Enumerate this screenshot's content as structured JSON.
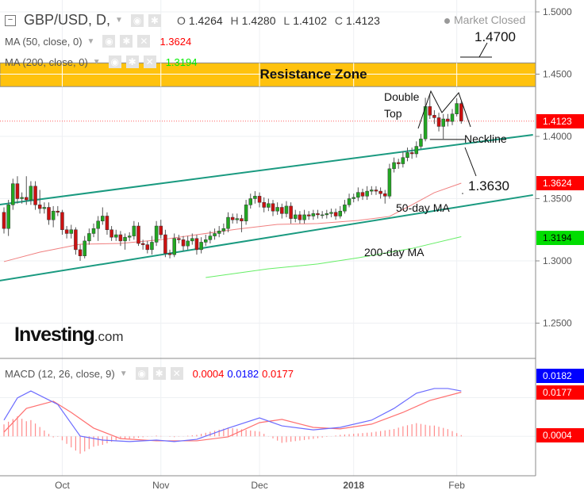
{
  "header": {
    "symbol": "GBP/USD, D,",
    "ohlc": {
      "o_label": "O",
      "o": "1.4264",
      "h_label": "H",
      "h": "1.4280",
      "l_label": "L",
      "l": "1.4102",
      "c_label": "C",
      "c": "1.4123"
    },
    "market_status": "Market Closed",
    "ma50_label": "MA (50, close, 0)",
    "ma50_value": "1.3624",
    "ma200_label": "MA (200, close, 0)",
    "ma200_value": "1.3194",
    "macd_label": "MACD (12, 26, close, 9)",
    "macd_hist_value": "0.0004",
    "macd_value": "0.0182",
    "macd_signal_value": "0.0177"
  },
  "logo": {
    "brand": "Investing",
    "suffix": ".com"
  },
  "colors": {
    "up": "#22a822",
    "down": "#cc1111",
    "ma50": "#f08080",
    "ma200": "#66ee66",
    "channel": "#1a9a80",
    "resistance": "#ffc20e",
    "macd": "#6b6bff",
    "signal": "#ff7070",
    "hist": "#ff8c8c",
    "tag_price": "#ff0000",
    "tag_ma200": "#00dd00",
    "tag_macd": "#0000ff"
  },
  "icons": [
    "collapse-icon",
    "eye-icon",
    "gear-icon",
    "close-icon",
    "chevron-down-icon"
  ],
  "chart_data": {
    "type": "candlestick",
    "price_axis": {
      "ticks": [
        "1.5000",
        "1.4500",
        "1.4000",
        "1.3500",
        "1.3000",
        "1.2500"
      ],
      "range": [
        1.23,
        1.51
      ]
    },
    "time_axis": {
      "ticks": [
        {
          "label": "Oct",
          "date": "2017-10-02"
        },
        {
          "label": "Nov",
          "date": "2017-11-01"
        },
        {
          "label": "Dec",
          "date": "2017-12-01"
        },
        {
          "label": "2018",
          "date": "2018-01-01",
          "bold": true
        },
        {
          "label": "Feb",
          "date": "2018-02-01"
        }
      ]
    },
    "grid": true,
    "ohlc": [
      [
        "2017-09-13",
        1.339,
        1.343,
        1.322,
        1.326
      ],
      [
        "2017-09-14",
        1.326,
        1.349,
        1.32,
        1.345
      ],
      [
        "2017-09-15",
        1.345,
        1.366,
        1.341,
        1.362
      ],
      [
        "2017-09-18",
        1.362,
        1.368,
        1.346,
        1.35
      ],
      [
        "2017-09-19",
        1.35,
        1.355,
        1.346,
        1.351
      ],
      [
        "2017-09-20",
        1.351,
        1.368,
        1.345,
        1.349
      ],
      [
        "2017-09-21",
        1.349,
        1.364,
        1.345,
        1.36
      ],
      [
        "2017-09-22",
        1.36,
        1.364,
        1.341,
        1.345
      ],
      [
        "2017-09-25",
        1.345,
        1.357,
        1.338,
        1.342
      ],
      [
        "2017-09-26",
        1.342,
        1.347,
        1.338,
        1.343
      ],
      [
        "2017-09-27",
        1.343,
        1.347,
        1.329,
        1.333
      ],
      [
        "2017-09-28",
        1.333,
        1.344,
        1.327,
        1.34
      ],
      [
        "2017-09-29",
        1.34,
        1.344,
        1.336,
        1.339
      ],
      [
        "2017-10-02",
        1.339,
        1.341,
        1.321,
        1.325
      ],
      [
        "2017-10-03",
        1.325,
        1.328,
        1.318,
        1.322
      ],
      [
        "2017-10-04",
        1.322,
        1.329,
        1.318,
        1.325
      ],
      [
        "2017-10-05",
        1.325,
        1.327,
        1.305,
        1.309
      ],
      [
        "2017-10-06",
        1.309,
        1.313,
        1.3,
        1.304
      ],
      [
        "2017-10-09",
        1.304,
        1.32,
        1.302,
        1.316
      ],
      [
        "2017-10-10",
        1.316,
        1.326,
        1.313,
        1.322
      ],
      [
        "2017-10-11",
        1.322,
        1.33,
        1.319,
        1.326
      ],
      [
        "2017-10-12",
        1.326,
        1.336,
        1.316,
        1.332
      ],
      [
        "2017-10-13",
        1.332,
        1.343,
        1.329,
        1.336
      ],
      [
        "2017-10-16",
        1.336,
        1.339,
        1.321,
        1.325
      ],
      [
        "2017-10-17",
        1.325,
        1.328,
        1.316,
        1.319
      ],
      [
        "2017-10-18",
        1.319,
        1.325,
        1.316,
        1.321
      ],
      [
        "2017-10-19",
        1.321,
        1.324,
        1.312,
        1.316
      ],
      [
        "2017-10-20",
        1.316,
        1.322,
        1.309,
        1.319
      ],
      [
        "2017-10-23",
        1.319,
        1.323,
        1.316,
        1.32
      ],
      [
        "2017-10-24",
        1.32,
        1.332,
        1.317,
        1.328
      ],
      [
        "2017-10-25",
        1.328,
        1.331,
        1.312,
        1.314
      ],
      [
        "2017-10-26",
        1.314,
        1.317,
        1.309,
        1.313
      ],
      [
        "2017-10-27",
        1.313,
        1.316,
        1.306,
        1.309
      ],
      [
        "2017-10-30",
        1.309,
        1.32,
        1.305,
        1.315
      ],
      [
        "2017-10-31",
        1.315,
        1.332,
        1.312,
        1.328
      ],
      [
        "2017-11-01",
        1.328,
        1.333,
        1.318,
        1.321
      ],
      [
        "2017-11-02",
        1.321,
        1.325,
        1.303,
        1.306
      ],
      [
        "2017-11-03",
        1.306,
        1.309,
        1.302,
        1.305
      ],
      [
        "2017-11-06",
        1.305,
        1.322,
        1.303,
        1.318
      ],
      [
        "2017-11-07",
        1.318,
        1.321,
        1.314,
        1.317
      ],
      [
        "2017-11-08",
        1.317,
        1.32,
        1.308,
        1.312
      ],
      [
        "2017-11-09",
        1.312,
        1.32,
        1.309,
        1.316
      ],
      [
        "2017-11-10",
        1.316,
        1.322,
        1.313,
        1.318
      ],
      [
        "2017-11-13",
        1.318,
        1.321,
        1.305,
        1.309
      ],
      [
        "2017-11-14",
        1.309,
        1.319,
        1.306,
        1.315
      ],
      [
        "2017-11-15",
        1.315,
        1.321,
        1.312,
        1.317
      ],
      [
        "2017-11-16",
        1.317,
        1.324,
        1.314,
        1.32
      ],
      [
        "2017-11-17",
        1.32,
        1.326,
        1.317,
        1.322
      ],
      [
        "2017-11-20",
        1.322,
        1.328,
        1.319,
        1.324
      ],
      [
        "2017-11-21",
        1.324,
        1.33,
        1.321,
        1.326
      ],
      [
        "2017-11-22",
        1.326,
        1.339,
        1.323,
        1.335
      ],
      [
        "2017-11-23",
        1.335,
        1.338,
        1.33,
        1.333
      ],
      [
        "2017-11-24",
        1.333,
        1.338,
        1.33,
        1.334
      ],
      [
        "2017-11-27",
        1.334,
        1.337,
        1.323,
        1.332
      ],
      [
        "2017-11-28",
        1.332,
        1.349,
        1.329,
        1.345
      ],
      [
        "2017-11-29",
        1.345,
        1.354,
        1.342,
        1.35
      ],
      [
        "2017-11-30",
        1.35,
        1.356,
        1.346,
        1.352
      ],
      [
        "2017-12-01",
        1.352,
        1.355,
        1.343,
        1.347
      ],
      [
        "2017-12-04",
        1.347,
        1.351,
        1.339,
        1.343
      ],
      [
        "2017-12-05",
        1.343,
        1.35,
        1.34,
        1.346
      ],
      [
        "2017-12-06",
        1.346,
        1.349,
        1.336,
        1.34
      ],
      [
        "2017-12-07",
        1.34,
        1.347,
        1.337,
        1.343
      ],
      [
        "2017-12-08",
        1.343,
        1.346,
        1.334,
        1.338
      ],
      [
        "2017-12-11",
        1.338,
        1.348,
        1.335,
        1.344
      ],
      [
        "2017-12-12",
        1.344,
        1.347,
        1.33,
        1.334
      ],
      [
        "2017-12-13",
        1.334,
        1.341,
        1.331,
        1.337
      ],
      [
        "2017-12-14",
        1.337,
        1.34,
        1.33,
        1.333
      ],
      [
        "2017-12-15",
        1.333,
        1.341,
        1.33,
        1.337
      ],
      [
        "2017-12-18",
        1.337,
        1.34,
        1.333,
        1.336
      ],
      [
        "2017-12-19",
        1.336,
        1.341,
        1.333,
        1.338
      ],
      [
        "2017-12-20",
        1.338,
        1.341,
        1.334,
        1.337
      ],
      [
        "2017-12-21",
        1.337,
        1.34,
        1.334,
        1.337
      ],
      [
        "2017-12-22",
        1.337,
        1.341,
        1.334,
        1.338
      ],
      [
        "2017-12-25",
        1.338,
        1.342,
        1.335,
        1.339
      ],
      [
        "2017-12-26",
        1.339,
        1.342,
        1.333,
        1.336
      ],
      [
        "2017-12-27",
        1.336,
        1.344,
        1.334,
        1.34
      ],
      [
        "2017-12-28",
        1.34,
        1.349,
        1.338,
        1.345
      ],
      [
        "2017-12-29",
        1.345,
        1.354,
        1.343,
        1.35
      ],
      [
        "2018-01-01",
        1.35,
        1.354,
        1.347,
        1.351
      ],
      [
        "2018-01-02",
        1.351,
        1.359,
        1.348,
        1.355
      ],
      [
        "2018-01-03",
        1.355,
        1.358,
        1.349,
        1.352
      ],
      [
        "2018-01-04",
        1.352,
        1.36,
        1.349,
        1.356
      ],
      [
        "2018-01-05",
        1.356,
        1.36,
        1.353,
        1.357
      ],
      [
        "2018-01-08",
        1.357,
        1.36,
        1.353,
        1.356
      ],
      [
        "2018-01-09",
        1.356,
        1.359,
        1.35,
        1.354
      ],
      [
        "2018-01-10",
        1.354,
        1.357,
        1.346,
        1.352
      ],
      [
        "2018-01-11",
        1.352,
        1.378,
        1.35,
        1.374
      ],
      [
        "2018-01-12",
        1.374,
        1.383,
        1.371,
        1.379
      ],
      [
        "2018-01-15",
        1.379,
        1.382,
        1.374,
        1.378
      ],
      [
        "2018-01-16",
        1.378,
        1.388,
        1.375,
        1.383
      ],
      [
        "2018-01-17",
        1.383,
        1.391,
        1.38,
        1.387
      ],
      [
        "2018-01-18",
        1.387,
        1.391,
        1.382,
        1.386
      ],
      [
        "2018-01-19",
        1.386,
        1.396,
        1.383,
        1.392
      ],
      [
        "2018-01-22",
        1.392,
        1.402,
        1.39,
        1.398
      ],
      [
        "2018-01-23",
        1.398,
        1.431,
        1.396,
        1.424
      ],
      [
        "2018-01-24",
        1.424,
        1.434,
        1.414,
        1.417
      ],
      [
        "2018-01-25",
        1.417,
        1.421,
        1.41,
        1.415
      ],
      [
        "2018-01-26",
        1.415,
        1.419,
        1.404,
        1.408
      ],
      [
        "2018-01-29",
        1.408,
        1.418,
        1.398,
        1.414
      ],
      [
        "2018-01-30",
        1.414,
        1.418,
        1.408,
        1.412
      ],
      [
        "2018-01-31",
        1.412,
        1.422,
        1.409,
        1.418
      ],
      [
        "2018-02-01",
        1.418,
        1.4307,
        1.416,
        1.4264
      ],
      [
        "2018-02-02",
        1.4264,
        1.428,
        1.4102,
        1.4123
      ]
    ],
    "ma50": [
      [
        "2017-09-13",
        1.2994
      ],
      [
        "2017-09-25",
        1.307
      ],
      [
        "2017-10-06",
        1.3134
      ],
      [
        "2017-10-19",
        1.314
      ],
      [
        "2017-11-01",
        1.317
      ],
      [
        "2017-11-13",
        1.321
      ],
      [
        "2017-11-24",
        1.3255
      ],
      [
        "2017-12-07",
        1.3293
      ],
      [
        "2017-12-20",
        1.33
      ],
      [
        "2018-01-02",
        1.3325
      ],
      [
        "2018-01-11",
        1.3357
      ],
      [
        "2018-01-18",
        1.345
      ],
      [
        "2018-01-25",
        1.3548
      ],
      [
        "2018-02-02",
        1.3624
      ]
    ],
    "ma200": [
      [
        "2017-11-15",
        1.2866
      ],
      [
        "2017-12-05",
        1.2936
      ],
      [
        "2017-12-20",
        1.2975
      ],
      [
        "2018-01-02",
        1.3025
      ],
      [
        "2018-01-18",
        1.31
      ],
      [
        "2018-02-02",
        1.3194
      ]
    ],
    "trendlines": [
      {
        "from": [
          "2017-09-12",
          1.3452
        ],
        "to": [
          "2018-02-26",
          1.4013
        ]
      },
      {
        "from": [
          "2017-09-12",
          1.2841
        ],
        "to": [
          "2018-02-26",
          1.3529
        ]
      }
    ],
    "neckline": {
      "from": "2018-01-24",
      "to": "2018-02-05",
      "price": 1.3975
    },
    "resistance_zone": {
      "label": "Resistance Zone",
      "low": 1.44,
      "high": 1.459
    },
    "annotations": {
      "double_top": [
        "Double",
        "Top"
      ],
      "neckline": "Neckline",
      "target_up": "1.4700",
      "target_down": "1.3630",
      "ma50": "50-day MA",
      "ma200": "200-day MA"
    },
    "last_price_tags": {
      "price": "1.4123",
      "ma50": "1.3624",
      "ma200": "1.3194",
      "macd": "0.0182",
      "signal": "0.0177",
      "hist": "0.0004"
    },
    "macd_line": [
      [
        "2017-09-13",
        0.0065
      ],
      [
        "2017-09-18",
        0.0154
      ],
      [
        "2017-09-21",
        0.0182
      ],
      [
        "2017-09-29",
        0.0128
      ],
      [
        "2017-10-06",
        0.0001
      ],
      [
        "2017-10-13",
        -0.0015
      ],
      [
        "2017-10-23",
        -0.0021
      ],
      [
        "2017-10-31",
        -0.0015
      ],
      [
        "2017-11-06",
        -0.0021
      ],
      [
        "2017-11-13",
        -0.0012
      ],
      [
        "2017-11-22",
        0.0033
      ],
      [
        "2017-12-01",
        0.0074
      ],
      [
        "2017-12-08",
        0.0042
      ],
      [
        "2017-12-19",
        0.0026
      ],
      [
        "2017-12-27",
        0.0036
      ],
      [
        "2018-01-05",
        0.0065
      ],
      [
        "2018-01-12",
        0.0112
      ],
      [
        "2018-01-19",
        0.0173
      ],
      [
        "2018-01-25",
        0.0192
      ],
      [
        "2018-01-30",
        0.0192
      ],
      [
        "2018-02-02",
        0.0182
      ]
    ],
    "signal_line": [
      [
        "2017-09-13",
        0.0017
      ],
      [
        "2017-09-20",
        0.0112
      ],
      [
        "2017-09-28",
        0.0141
      ],
      [
        "2017-10-04",
        0.0096
      ],
      [
        "2017-10-11",
        0.0033
      ],
      [
        "2017-10-19",
        -0.0009
      ],
      [
        "2017-10-31",
        -0.0018
      ],
      [
        "2017-11-13",
        -0.0018
      ],
      [
        "2017-11-22",
        -0.0002
      ],
      [
        "2017-12-01",
        0.0055
      ],
      [
        "2017-12-08",
        0.0068
      ],
      [
        "2017-12-19",
        0.0036
      ],
      [
        "2017-12-27",
        0.003
      ],
      [
        "2018-01-05",
        0.0049
      ],
      [
        "2018-01-16",
        0.0096
      ],
      [
        "2018-01-24",
        0.0144
      ],
      [
        "2018-02-02",
        0.0177
      ]
    ]
  }
}
